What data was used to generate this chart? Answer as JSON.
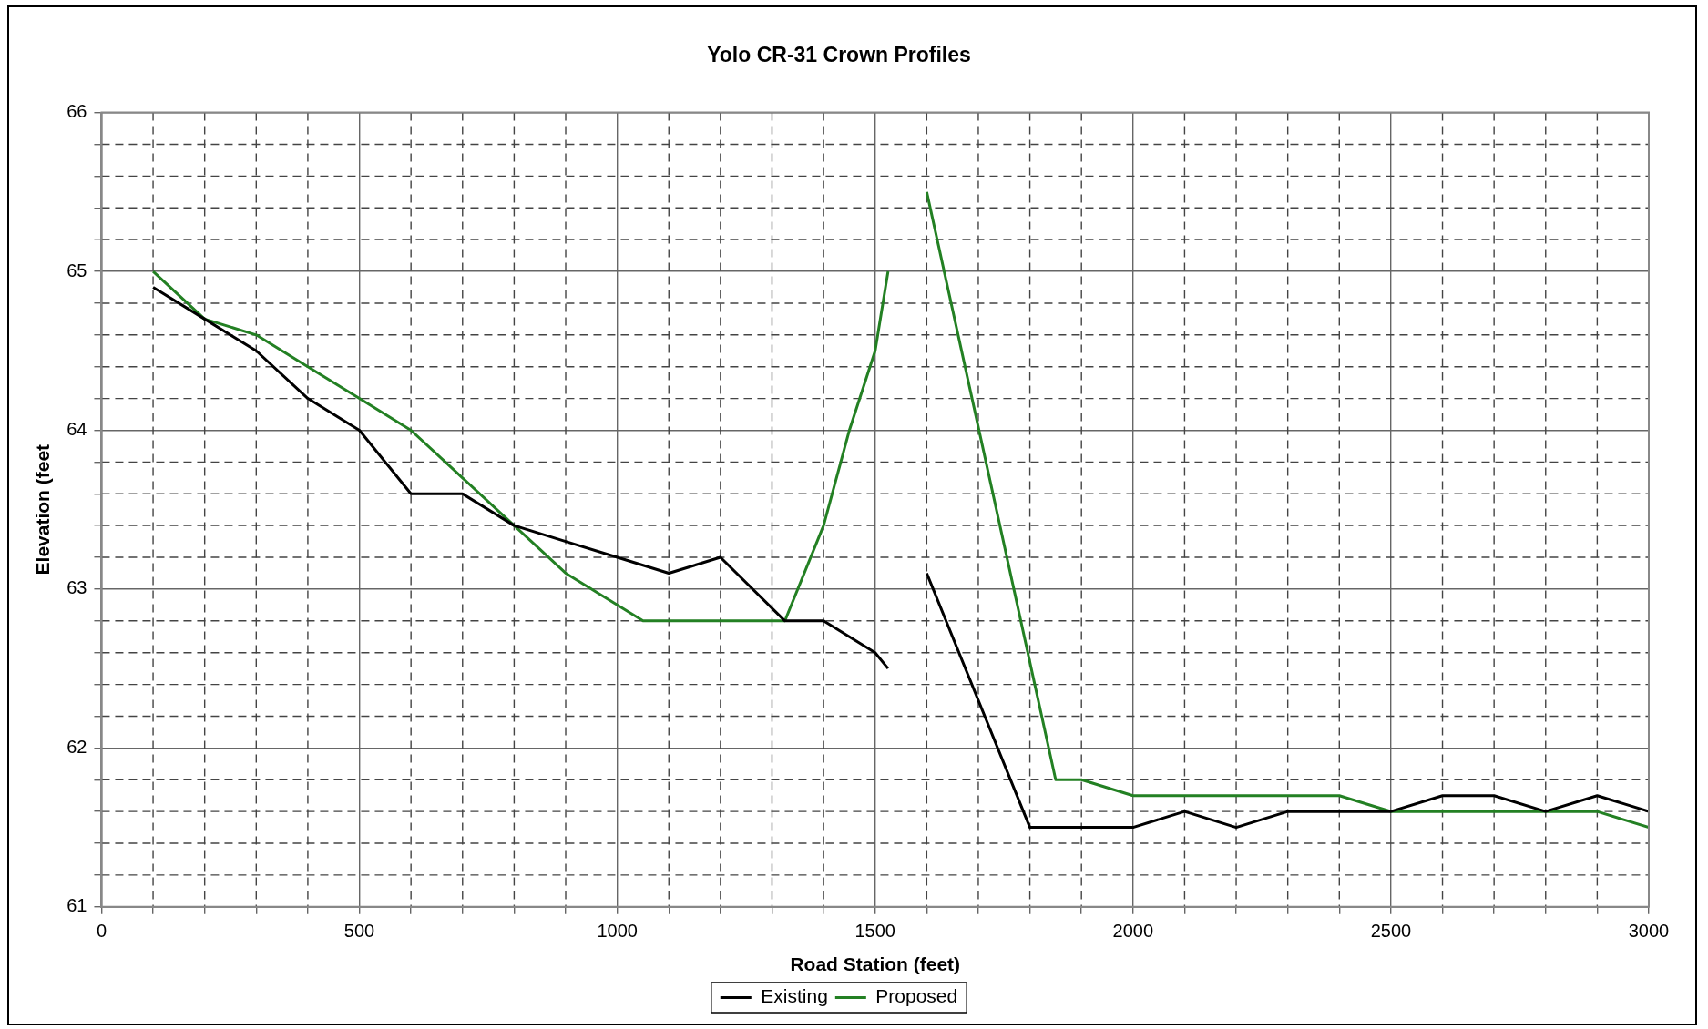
{
  "chart_data": {
    "type": "line",
    "title": "Yolo CR-31 Crown Profiles",
    "xlabel": "Road Station (feet)",
    "ylabel": "Elevation (feet",
    "xlim": [
      0,
      3000
    ],
    "ylim": [
      61,
      66
    ],
    "xticks": [
      0,
      {
        "value": 100,
        "label": null
      },
      {
        "value": 200,
        "label": null
      },
      {
        "value": 300,
        "label": null
      },
      {
        "value": 400,
        "label": null
      },
      500,
      {
        "value": 600,
        "label": null
      },
      {
        "value": 700,
        "label": null
      },
      {
        "value": 800,
        "label": null
      },
      {
        "value": 900,
        "label": null
      },
      1000,
      {
        "value": 1100,
        "label": null
      },
      {
        "value": 1200,
        "label": null
      },
      {
        "value": 1300,
        "label": null
      },
      {
        "value": 1400,
        "label": null
      },
      1500,
      {
        "value": 1600,
        "label": null
      },
      {
        "value": 1700,
        "label": null
      },
      {
        "value": 1800,
        "label": null
      },
      {
        "value": 1900,
        "label": null
      },
      2000,
      {
        "value": 2100,
        "label": null
      },
      {
        "value": 2200,
        "label": null
      },
      {
        "value": 2300,
        "label": null
      },
      {
        "value": 2400,
        "label": null
      },
      2500,
      {
        "value": 2600,
        "label": null
      },
      {
        "value": 2700,
        "label": null
      },
      {
        "value": 2800,
        "label": null
      },
      {
        "value": 2900,
        "label": null
      },
      3000
    ],
    "yticks": [
      61,
      {
        "value": 61.2,
        "label": null
      },
      {
        "value": 61.4,
        "label": null
      },
      {
        "value": 61.6,
        "label": null
      },
      {
        "value": 61.8,
        "label": null
      },
      62,
      {
        "value": 62.2,
        "label": null
      },
      {
        "value": 62.4,
        "label": null
      },
      {
        "value": 62.6,
        "label": null
      },
      {
        "value": 62.8,
        "label": null
      },
      63,
      {
        "value": 63.2,
        "label": null
      },
      {
        "value": 63.4,
        "label": null
      },
      {
        "value": 63.6,
        "label": null
      },
      {
        "value": 63.8,
        "label": null
      },
      64,
      {
        "value": 64.2,
        "label": null
      },
      {
        "value": 64.4,
        "label": null
      },
      {
        "value": 64.6,
        "label": null
      },
      {
        "value": 64.8,
        "label": null
      },
      65,
      {
        "value": 65.2,
        "label": null
      },
      {
        "value": 65.4,
        "label": null
      },
      {
        "value": 65.6,
        "label": null
      },
      {
        "value": 65.8,
        "label": null
      },
      66
    ],
    "grid": true,
    "legend": "bottom",
    "marker": "none",
    "line_style": "solid",
    "series": [
      {
        "name": "Existing",
        "color": "#000000",
        "x": [
          100,
          200,
          300,
          400,
          500,
          600,
          700,
          800,
          900,
          1000,
          1100,
          1200,
          1325,
          1400,
          1500,
          1525,
          1560,
          1600,
          1800,
          1900,
          2000,
          2100,
          2200,
          2300,
          2400,
          2500,
          2600,
          2700,
          2800,
          2900,
          3000
        ],
        "values": [
          64.9,
          64.7,
          64.5,
          64.2,
          64.0,
          63.6,
          63.6,
          63.4,
          63.3,
          63.2,
          63.1,
          63.2,
          62.8,
          62.8,
          62.6,
          62.5,
          null,
          63.1,
          61.5,
          61.5,
          61.5,
          61.6,
          61.5,
          61.6,
          61.6,
          61.6,
          61.7,
          61.7,
          61.6,
          61.7,
          61.6
        ]
      },
      {
        "name": "Proposed",
        "color": "#238023",
        "x": [
          100,
          200,
          300,
          400,
          500,
          600,
          700,
          800,
          900,
          1050,
          1325,
          1400,
          1450,
          1500,
          1525,
          1560,
          1600,
          1850,
          1900,
          2000,
          2400,
          2500,
          2900,
          3000
        ],
        "values": [
          65.0,
          64.7,
          64.6,
          64.4,
          64.2,
          64.0,
          63.7,
          63.4,
          63.1,
          62.8,
          62.8,
          63.4,
          64.0,
          64.5,
          65.0,
          null,
          65.5,
          61.8,
          61.8,
          61.7,
          61.7,
          61.6,
          61.6,
          61.5
        ]
      }
    ]
  }
}
